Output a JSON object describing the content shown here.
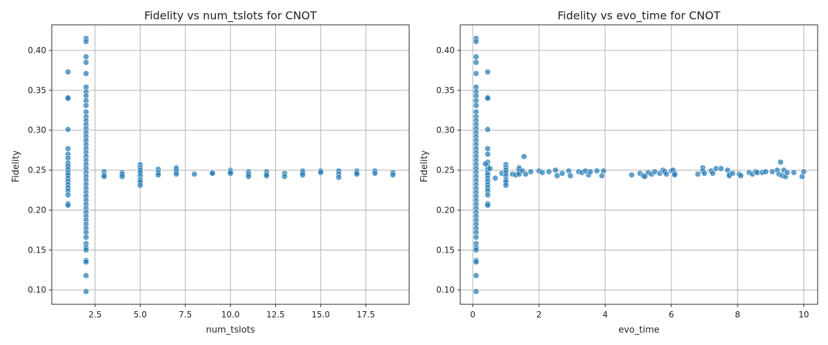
{
  "chart_data": [
    {
      "type": "scatter",
      "title": "Fidelity vs num_tslots for CNOT",
      "xlabel": "num_tslots",
      "ylabel": "Fidelity",
      "xlim": [
        0.1,
        19.9
      ],
      "ylim": [
        0.082,
        0.432
      ],
      "xticks": [
        2.5,
        5.0,
        7.5,
        10.0,
        12.5,
        15.0,
        17.5
      ],
      "xtick_labels": [
        "2.5",
        "5.0",
        "7.5",
        "10.0",
        "12.5",
        "15.0",
        "17.5"
      ],
      "yticks": [
        0.1,
        0.15,
        0.2,
        0.25,
        0.3,
        0.35,
        0.4
      ],
      "ytick_labels": [
        "0.10",
        "0.15",
        "0.20",
        "0.25",
        "0.30",
        "0.35",
        "0.40"
      ],
      "grid": true,
      "color": "#1f77b4",
      "points": [
        {
          "x": 1,
          "y": 0.373
        },
        {
          "x": 1,
          "y": 0.341
        },
        {
          "x": 1,
          "y": 0.34
        },
        {
          "x": 1,
          "y": 0.301
        },
        {
          "x": 1,
          "y": 0.277
        },
        {
          "x": 1,
          "y": 0.27
        },
        {
          "x": 1,
          "y": 0.265
        },
        {
          "x": 1,
          "y": 0.259
        },
        {
          "x": 1,
          "y": 0.255
        },
        {
          "x": 1,
          "y": 0.251
        },
        {
          "x": 1,
          "y": 0.247
        },
        {
          "x": 1,
          "y": 0.244
        },
        {
          "x": 1,
          "y": 0.24
        },
        {
          "x": 1,
          "y": 0.236
        },
        {
          "x": 1,
          "y": 0.232
        },
        {
          "x": 1,
          "y": 0.228
        },
        {
          "x": 1,
          "y": 0.224
        },
        {
          "x": 1,
          "y": 0.219
        },
        {
          "x": 1,
          "y": 0.208
        },
        {
          "x": 1,
          "y": 0.206
        },
        {
          "x": 2,
          "y": 0.415
        },
        {
          "x": 2,
          "y": 0.411
        },
        {
          "x": 2,
          "y": 0.392
        },
        {
          "x": 2,
          "y": 0.385
        },
        {
          "x": 2,
          "y": 0.371
        },
        {
          "x": 2,
          "y": 0.354
        },
        {
          "x": 2,
          "y": 0.348
        },
        {
          "x": 2,
          "y": 0.343
        },
        {
          "x": 2,
          "y": 0.337
        },
        {
          "x": 2,
          "y": 0.331
        },
        {
          "x": 2,
          "y": 0.323
        },
        {
          "x": 2,
          "y": 0.317
        },
        {
          "x": 2,
          "y": 0.312
        },
        {
          "x": 2,
          "y": 0.307
        },
        {
          "x": 2,
          "y": 0.302
        },
        {
          "x": 2,
          "y": 0.297
        },
        {
          "x": 2,
          "y": 0.292
        },
        {
          "x": 2,
          "y": 0.287
        },
        {
          "x": 2,
          "y": 0.282
        },
        {
          "x": 2,
          "y": 0.277
        },
        {
          "x": 2,
          "y": 0.272
        },
        {
          "x": 2,
          "y": 0.267
        },
        {
          "x": 2,
          "y": 0.262
        },
        {
          "x": 2,
          "y": 0.257
        },
        {
          "x": 2,
          "y": 0.252
        },
        {
          "x": 2,
          "y": 0.247
        },
        {
          "x": 2,
          "y": 0.242
        },
        {
          "x": 2,
          "y": 0.237
        },
        {
          "x": 2,
          "y": 0.232
        },
        {
          "x": 2,
          "y": 0.227
        },
        {
          "x": 2,
          "y": 0.222
        },
        {
          "x": 2,
          "y": 0.217
        },
        {
          "x": 2,
          "y": 0.212
        },
        {
          "x": 2,
          "y": 0.207
        },
        {
          "x": 2,
          "y": 0.202
        },
        {
          "x": 2,
          "y": 0.197
        },
        {
          "x": 2,
          "y": 0.192
        },
        {
          "x": 2,
          "y": 0.187
        },
        {
          "x": 2,
          "y": 0.182
        },
        {
          "x": 2,
          "y": 0.177
        },
        {
          "x": 2,
          "y": 0.172
        },
        {
          "x": 2,
          "y": 0.166
        },
        {
          "x": 2,
          "y": 0.158
        },
        {
          "x": 2,
          "y": 0.153
        },
        {
          "x": 2,
          "y": 0.15
        },
        {
          "x": 2,
          "y": 0.137
        },
        {
          "x": 2,
          "y": 0.135
        },
        {
          "x": 2,
          "y": 0.118
        },
        {
          "x": 2,
          "y": 0.098
        },
        {
          "x": 3,
          "y": 0.248
        },
        {
          "x": 3,
          "y": 0.244
        },
        {
          "x": 3,
          "y": 0.242
        },
        {
          "x": 4,
          "y": 0.247
        },
        {
          "x": 4,
          "y": 0.245
        },
        {
          "x": 4,
          "y": 0.242
        },
        {
          "x": 5,
          "y": 0.257
        },
        {
          "x": 5,
          "y": 0.253
        },
        {
          "x": 5,
          "y": 0.25
        },
        {
          "x": 5,
          "y": 0.247
        },
        {
          "x": 5,
          "y": 0.243
        },
        {
          "x": 5,
          "y": 0.238
        },
        {
          "x": 5,
          "y": 0.235
        },
        {
          "x": 5,
          "y": 0.231
        },
        {
          "x": 6,
          "y": 0.251
        },
        {
          "x": 6,
          "y": 0.247
        },
        {
          "x": 6,
          "y": 0.244
        },
        {
          "x": 7,
          "y": 0.253
        },
        {
          "x": 7,
          "y": 0.251
        },
        {
          "x": 7,
          "y": 0.248
        },
        {
          "x": 7,
          "y": 0.245
        },
        {
          "x": 8,
          "y": 0.245
        },
        {
          "x": 9,
          "y": 0.247
        },
        {
          "x": 9,
          "y": 0.246
        },
        {
          "x": 10,
          "y": 0.25
        },
        {
          "x": 10,
          "y": 0.248
        },
        {
          "x": 10,
          "y": 0.246
        },
        {
          "x": 11,
          "y": 0.248
        },
        {
          "x": 11,
          "y": 0.245
        },
        {
          "x": 11,
          "y": 0.242
        },
        {
          "x": 12,
          "y": 0.248
        },
        {
          "x": 12,
          "y": 0.245
        },
        {
          "x": 12,
          "y": 0.243
        },
        {
          "x": 13,
          "y": 0.246
        },
        {
          "x": 13,
          "y": 0.242
        },
        {
          "x": 14,
          "y": 0.249
        },
        {
          "x": 14,
          "y": 0.247
        },
        {
          "x": 14,
          "y": 0.244
        },
        {
          "x": 15,
          "y": 0.249
        },
        {
          "x": 15,
          "y": 0.247
        },
        {
          "x": 16,
          "y": 0.249
        },
        {
          "x": 16,
          "y": 0.245
        },
        {
          "x": 16,
          "y": 0.241
        },
        {
          "x": 17,
          "y": 0.249
        },
        {
          "x": 17,
          "y": 0.247
        },
        {
          "x": 17,
          "y": 0.245
        },
        {
          "x": 18,
          "y": 0.249
        },
        {
          "x": 18,
          "y": 0.246
        },
        {
          "x": 19,
          "y": 0.247
        },
        {
          "x": 19,
          "y": 0.244
        }
      ]
    },
    {
      "type": "scatter",
      "title": "Fidelity vs evo_time for CNOT",
      "xlabel": "evo_time",
      "ylabel": "Fidelity",
      "xlim": [
        -0.38,
        10.42
      ],
      "ylim": [
        0.082,
        0.432
      ],
      "xticks": [
        0,
        2,
        4,
        6,
        8,
        10
      ],
      "xtick_labels": [
        "0",
        "2",
        "4",
        "6",
        "8",
        "10"
      ],
      "yticks": [
        0.1,
        0.15,
        0.2,
        0.25,
        0.3,
        0.35,
        0.4
      ],
      "ytick_labels": [
        "0.10",
        "0.15",
        "0.20",
        "0.25",
        "0.30",
        "0.35",
        "0.40"
      ],
      "grid": true,
      "color": "#1f77b4",
      "points": [
        {
          "x": 0.1,
          "y": 0.415
        },
        {
          "x": 0.1,
          "y": 0.411
        },
        {
          "x": 0.1,
          "y": 0.392
        },
        {
          "x": 0.1,
          "y": 0.385
        },
        {
          "x": 0.1,
          "y": 0.371
        },
        {
          "x": 0.1,
          "y": 0.354
        },
        {
          "x": 0.1,
          "y": 0.348
        },
        {
          "x": 0.1,
          "y": 0.343
        },
        {
          "x": 0.1,
          "y": 0.337
        },
        {
          "x": 0.1,
          "y": 0.331
        },
        {
          "x": 0.1,
          "y": 0.323
        },
        {
          "x": 0.1,
          "y": 0.317
        },
        {
          "x": 0.1,
          "y": 0.312
        },
        {
          "x": 0.1,
          "y": 0.307
        },
        {
          "x": 0.1,
          "y": 0.302
        },
        {
          "x": 0.1,
          "y": 0.297
        },
        {
          "x": 0.1,
          "y": 0.292
        },
        {
          "x": 0.1,
          "y": 0.287
        },
        {
          "x": 0.1,
          "y": 0.282
        },
        {
          "x": 0.1,
          "y": 0.277
        },
        {
          "x": 0.1,
          "y": 0.272
        },
        {
          "x": 0.1,
          "y": 0.267
        },
        {
          "x": 0.1,
          "y": 0.262
        },
        {
          "x": 0.1,
          "y": 0.257
        },
        {
          "x": 0.1,
          "y": 0.252
        },
        {
          "x": 0.1,
          "y": 0.247
        },
        {
          "x": 0.1,
          "y": 0.242
        },
        {
          "x": 0.1,
          "y": 0.237
        },
        {
          "x": 0.1,
          "y": 0.232
        },
        {
          "x": 0.1,
          "y": 0.227
        },
        {
          "x": 0.1,
          "y": 0.222
        },
        {
          "x": 0.1,
          "y": 0.217
        },
        {
          "x": 0.1,
          "y": 0.212
        },
        {
          "x": 0.1,
          "y": 0.207
        },
        {
          "x": 0.1,
          "y": 0.202
        },
        {
          "x": 0.1,
          "y": 0.197
        },
        {
          "x": 0.1,
          "y": 0.192
        },
        {
          "x": 0.1,
          "y": 0.187
        },
        {
          "x": 0.1,
          "y": 0.182
        },
        {
          "x": 0.1,
          "y": 0.177
        },
        {
          "x": 0.1,
          "y": 0.172
        },
        {
          "x": 0.1,
          "y": 0.166
        },
        {
          "x": 0.1,
          "y": 0.158
        },
        {
          "x": 0.1,
          "y": 0.153
        },
        {
          "x": 0.1,
          "y": 0.15
        },
        {
          "x": 0.1,
          "y": 0.137
        },
        {
          "x": 0.1,
          "y": 0.135
        },
        {
          "x": 0.1,
          "y": 0.118
        },
        {
          "x": 0.1,
          "y": 0.098
        },
        {
          "x": 0.45,
          "y": 0.373
        },
        {
          "x": 0.45,
          "y": 0.341
        },
        {
          "x": 0.45,
          "y": 0.34
        },
        {
          "x": 0.45,
          "y": 0.301
        },
        {
          "x": 0.45,
          "y": 0.277
        },
        {
          "x": 0.45,
          "y": 0.27
        },
        {
          "x": 0.45,
          "y": 0.26
        },
        {
          "x": 0.45,
          "y": 0.255
        },
        {
          "x": 0.45,
          "y": 0.251
        },
        {
          "x": 0.45,
          "y": 0.247
        },
        {
          "x": 0.45,
          "y": 0.244
        },
        {
          "x": 0.45,
          "y": 0.24
        },
        {
          "x": 0.45,
          "y": 0.236
        },
        {
          "x": 0.45,
          "y": 0.232
        },
        {
          "x": 0.45,
          "y": 0.228
        },
        {
          "x": 0.45,
          "y": 0.224
        },
        {
          "x": 0.45,
          "y": 0.219
        },
        {
          "x": 0.45,
          "y": 0.208
        },
        {
          "x": 0.45,
          "y": 0.206
        },
        {
          "x": 0.38,
          "y": 0.258
        },
        {
          "x": 0.52,
          "y": 0.252
        },
        {
          "x": 0.68,
          "y": 0.24
        },
        {
          "x": 0.88,
          "y": 0.246
        },
        {
          "x": 1.0,
          "y": 0.257
        },
        {
          "x": 1.0,
          "y": 0.253
        },
        {
          "x": 1.0,
          "y": 0.25
        },
        {
          "x": 1.0,
          "y": 0.247
        },
        {
          "x": 1.0,
          "y": 0.243
        },
        {
          "x": 1.0,
          "y": 0.238
        },
        {
          "x": 1.0,
          "y": 0.235
        },
        {
          "x": 1.0,
          "y": 0.231
        },
        {
          "x": 1.2,
          "y": 0.245
        },
        {
          "x": 1.3,
          "y": 0.244
        },
        {
          "x": 1.4,
          "y": 0.253
        },
        {
          "x": 1.4,
          "y": 0.251
        },
        {
          "x": 1.4,
          "y": 0.248
        },
        {
          "x": 1.4,
          "y": 0.245
        },
        {
          "x": 1.5,
          "y": 0.249
        },
        {
          "x": 1.55,
          "y": 0.267
        },
        {
          "x": 1.6,
          "y": 0.245
        },
        {
          "x": 1.75,
          "y": 0.248
        },
        {
          "x": 2.0,
          "y": 0.249
        },
        {
          "x": 2.1,
          "y": 0.247
        },
        {
          "x": 2.3,
          "y": 0.248
        },
        {
          "x": 2.5,
          "y": 0.25
        },
        {
          "x": 2.55,
          "y": 0.243
        },
        {
          "x": 2.7,
          "y": 0.246
        },
        {
          "x": 2.9,
          "y": 0.249
        },
        {
          "x": 2.95,
          "y": 0.243
        },
        {
          "x": 3.2,
          "y": 0.248
        },
        {
          "x": 3.3,
          "y": 0.247
        },
        {
          "x": 3.4,
          "y": 0.249
        },
        {
          "x": 3.5,
          "y": 0.244
        },
        {
          "x": 3.55,
          "y": 0.248
        },
        {
          "x": 3.75,
          "y": 0.249
        },
        {
          "x": 3.9,
          "y": 0.243
        },
        {
          "x": 3.95,
          "y": 0.249
        },
        {
          "x": 4.8,
          "y": 0.244
        },
        {
          "x": 5.05,
          "y": 0.246
        },
        {
          "x": 5.15,
          "y": 0.243
        },
        {
          "x": 5.2,
          "y": 0.242
        },
        {
          "x": 5.3,
          "y": 0.247
        },
        {
          "x": 5.4,
          "y": 0.245
        },
        {
          "x": 5.5,
          "y": 0.248
        },
        {
          "x": 5.65,
          "y": 0.246
        },
        {
          "x": 5.75,
          "y": 0.25
        },
        {
          "x": 5.8,
          "y": 0.248
        },
        {
          "x": 5.85,
          "y": 0.245
        },
        {
          "x": 6.0,
          "y": 0.249
        },
        {
          "x": 6.05,
          "y": 0.25
        },
        {
          "x": 6.1,
          "y": 0.246
        },
        {
          "x": 6.1,
          "y": 0.244
        },
        {
          "x": 6.8,
          "y": 0.245
        },
        {
          "x": 6.95,
          "y": 0.253
        },
        {
          "x": 6.95,
          "y": 0.249
        },
        {
          "x": 7.0,
          "y": 0.246
        },
        {
          "x": 7.2,
          "y": 0.249
        },
        {
          "x": 7.25,
          "y": 0.246
        },
        {
          "x": 7.35,
          "y": 0.252
        },
        {
          "x": 7.5,
          "y": 0.252
        },
        {
          "x": 7.7,
          "y": 0.25
        },
        {
          "x": 7.75,
          "y": 0.245
        },
        {
          "x": 7.75,
          "y": 0.243
        },
        {
          "x": 7.85,
          "y": 0.246
        },
        {
          "x": 8.05,
          "y": 0.245
        },
        {
          "x": 8.1,
          "y": 0.243
        },
        {
          "x": 8.35,
          "y": 0.247
        },
        {
          "x": 8.45,
          "y": 0.245
        },
        {
          "x": 8.55,
          "y": 0.248
        },
        {
          "x": 8.6,
          "y": 0.247
        },
        {
          "x": 8.75,
          "y": 0.247
        },
        {
          "x": 8.85,
          "y": 0.248
        },
        {
          "x": 9.05,
          "y": 0.248
        },
        {
          "x": 9.2,
          "y": 0.25
        },
        {
          "x": 9.25,
          "y": 0.245
        },
        {
          "x": 9.3,
          "y": 0.26
        },
        {
          "x": 9.35,
          "y": 0.243
        },
        {
          "x": 9.4,
          "y": 0.25
        },
        {
          "x": 9.45,
          "y": 0.242
        },
        {
          "x": 9.5,
          "y": 0.247
        },
        {
          "x": 9.7,
          "y": 0.247
        },
        {
          "x": 9.95,
          "y": 0.242
        },
        {
          "x": 10.0,
          "y": 0.248
        }
      ]
    }
  ]
}
